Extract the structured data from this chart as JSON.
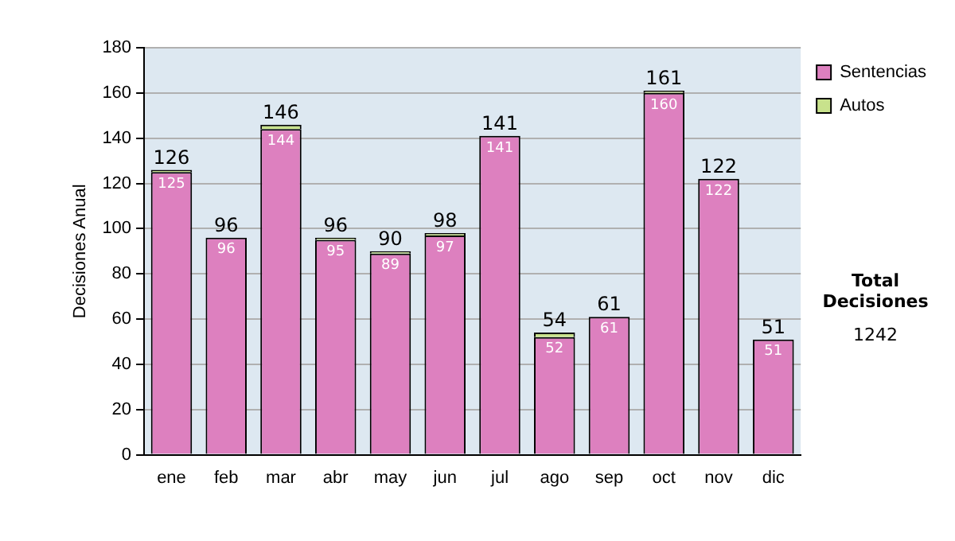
{
  "chart_data": {
    "type": "bar",
    "stacked": true,
    "ylabel": "Decisiones Anual",
    "categories": [
      "ene",
      "feb",
      "mar",
      "abr",
      "may",
      "jun",
      "jul",
      "ago",
      "sep",
      "oct",
      "nov",
      "dic"
    ],
    "series": [
      {
        "name": "Sentencias",
        "color": "#dd80bf",
        "values": [
          125,
          96,
          144,
          95,
          89,
          97,
          141,
          52,
          61,
          160,
          122,
          51
        ],
        "value_labels": [
          "125",
          "96",
          "144",
          "95",
          "89",
          "97",
          "141",
          "52",
          "61",
          "160",
          "122",
          "51"
        ]
      },
      {
        "name": "Autos",
        "color": "#c8e28c",
        "values": [
          1,
          0,
          2,
          1,
          1,
          1,
          0,
          2,
          0,
          1,
          0,
          0
        ]
      }
    ],
    "totals": [
      "126",
      "96",
      "146",
      "96",
      "90",
      "98",
      "141",
      "54",
      "61",
      "161",
      "122",
      "51"
    ],
    "ylim": [
      0,
      180
    ],
    "yticks": [
      0,
      20,
      40,
      60,
      80,
      100,
      120,
      140,
      160,
      180
    ],
    "grid": "y",
    "legend": "right",
    "annotations": [
      "Total Decisiones",
      "1242"
    ]
  }
}
